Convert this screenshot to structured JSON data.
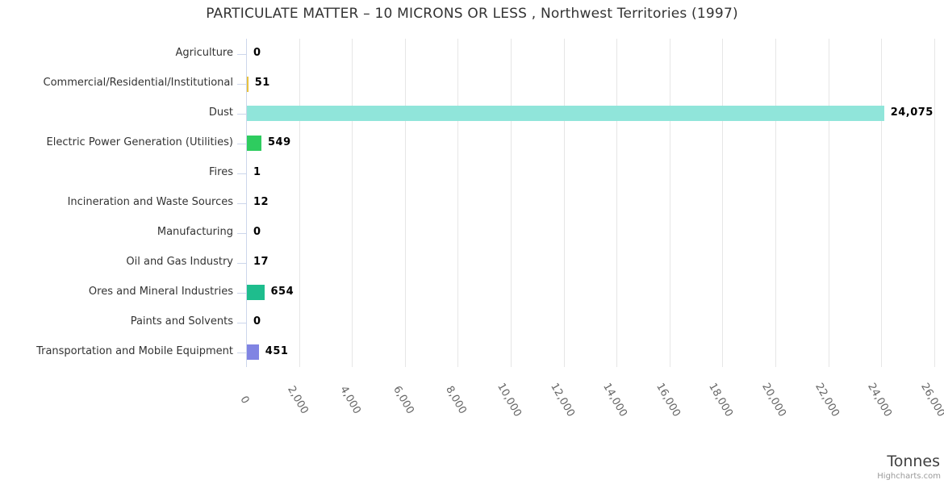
{
  "chart_data": {
    "type": "bar",
    "orientation": "horizontal",
    "title": "PARTICULATE MATTER – 10 MICRONS OR LESS , Northwest Territories (1997)",
    "xlabel": "Tonnes",
    "categories": [
      "Agriculture",
      "Commercial/Residential/Institutional",
      "Dust",
      "Electric Power Generation (Utilities)",
      "Fires",
      "Incineration and Waste Sources",
      "Manufacturing",
      "Oil and Gas Industry",
      "Ores and Mineral Industries",
      "Paints and Solvents",
      "Transportation and Mobile Equipment"
    ],
    "values": [
      0,
      51,
      24075,
      549,
      1,
      12,
      0,
      17,
      654,
      0,
      451
    ],
    "value_labels": [
      "0",
      "51",
      "24,075",
      "549",
      "1",
      "12",
      "0",
      "17",
      "654",
      "0",
      "451"
    ],
    "bar_colors": [
      "#90e5da",
      "#e8c13e",
      "#90e5da",
      "#2ecc5f",
      null,
      null,
      null,
      null,
      "#1ebd8d",
      null,
      "#8084e3"
    ],
    "xaxis": {
      "min": 0,
      "max": 26000,
      "tick_interval": 2000,
      "tick_labels": [
        "0",
        "2,000",
        "4,000",
        "6,000",
        "8,000",
        "10,000",
        "12,000",
        "14,000",
        "16,000",
        "18,000",
        "20,000",
        "22,000",
        "24,000",
        "26,000"
      ]
    },
    "grid": true,
    "legend": false
  },
  "credits": {
    "label": "Highcharts.com"
  },
  "colors": {
    "grid": "#e6e6e6",
    "axis_line": "#ccd6eb",
    "title_text": "#333333",
    "category_text": "#333333",
    "tick_text": "#666666",
    "value_text": "#000000",
    "axis_title_text": "#404040",
    "credits_text": "#999999"
  }
}
